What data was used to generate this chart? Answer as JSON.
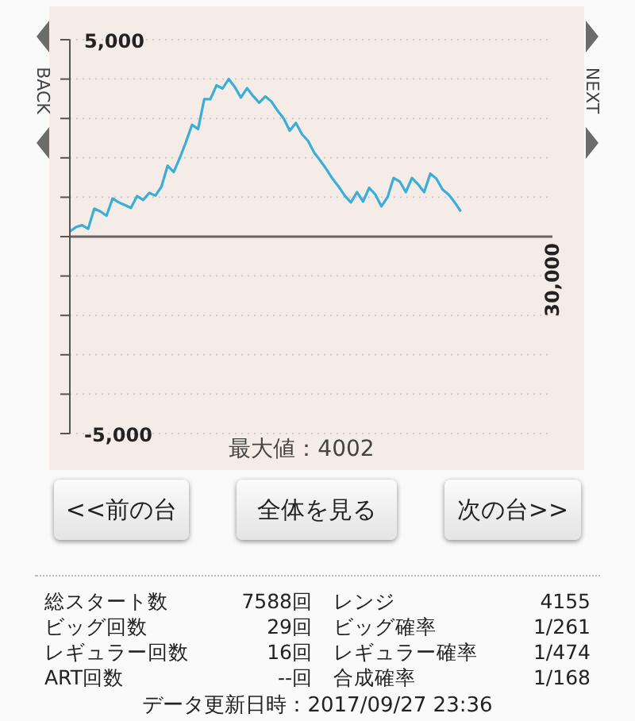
{
  "chart_data": {
    "type": "line",
    "annotations": [
      "最大値：4002",
      "<<前の台",
      "全体を見る",
      "次の台>>",
      "総スタート数",
      "7588回",
      "レンジ",
      "4155",
      "ビッグ回数",
      "29回",
      "ビッグ確率",
      "1/261",
      "レギュラー回数",
      "16回",
      "レギュラー確率",
      "1/474",
      "ART回数",
      "--回",
      "合成確率",
      "1/168",
      "データ更新日時：2017/09/27 23:36",
      "BACK",
      "NEXT",
      "30,000"
    ],
    "categories": [
      null,
      null,
      null,
      null,
      null,
      null,
      null,
      null,
      null,
      null,
      null,
      null,
      null,
      null,
      null,
      null,
      null,
      null,
      null,
      null,
      null,
      null,
      null,
      null,
      null,
      null,
      null,
      null,
      null,
      null,
      null,
      null,
      null,
      null,
      null,
      null,
      null,
      null,
      null,
      null,
      null,
      null,
      null,
      null,
      null,
      null,
      null,
      null,
      null,
      null,
      null,
      null,
      null,
      null,
      null,
      null,
      null,
      null,
      null,
      null,
      null,
      null,
      null,
      null,
      null,
      null,
      null,
      null,
      null,
      null,
      null,
      null,
      null,
      null,
      null,
      null,
      null,
      null,
      null,
      null
    ],
    "series": [
      {
        "color": "#3aaed8",
        "values": [
          130,
          240,
          290,
          200,
          710,
          640,
          530,
          970,
          870,
          800,
          730,
          1030,
          930,
          1110,
          1040,
          1270,
          1800,
          1640,
          2000,
          2400,
          2840,
          2730,
          3490,
          3490,
          3840,
          3760,
          4002,
          3800,
          3530,
          3770,
          3570,
          3400,
          3560,
          3430,
          3200,
          3000,
          2690,
          2890,
          2600,
          2430,
          2130,
          1930,
          1710,
          1470,
          1270,
          1040,
          870,
          1130,
          890,
          1240,
          1070,
          770,
          1000,
          1490,
          1400,
          1130,
          1490,
          1330,
          1130,
          1600,
          1470,
          1200,
          1070,
          870,
          640,
          null,
          null,
          null,
          null,
          null,
          null,
          null,
          null,
          null,
          null,
          null,
          null,
          null,
          null,
          null
        ]
      }
    ],
    "ylim": [
      -5000,
      5000
    ],
    "yticks": [
      {
        "value": -5000,
        "label": "-5,000"
      },
      {
        "value": -4000,
        "label": null
      },
      {
        "value": -3000,
        "label": null
      },
      {
        "value": -2000,
        "label": null
      },
      {
        "value": -1000,
        "label": null
      },
      {
        "value": 0,
        "label": null
      },
      {
        "value": 1000,
        "label": null
      },
      {
        "value": 2000,
        "label": null
      },
      {
        "value": 3000,
        "label": null
      },
      {
        "value": 4000,
        "label": null
      },
      {
        "value": 5000,
        "label": "5,000"
      }
    ],
    "grid": "y"
  }
}
